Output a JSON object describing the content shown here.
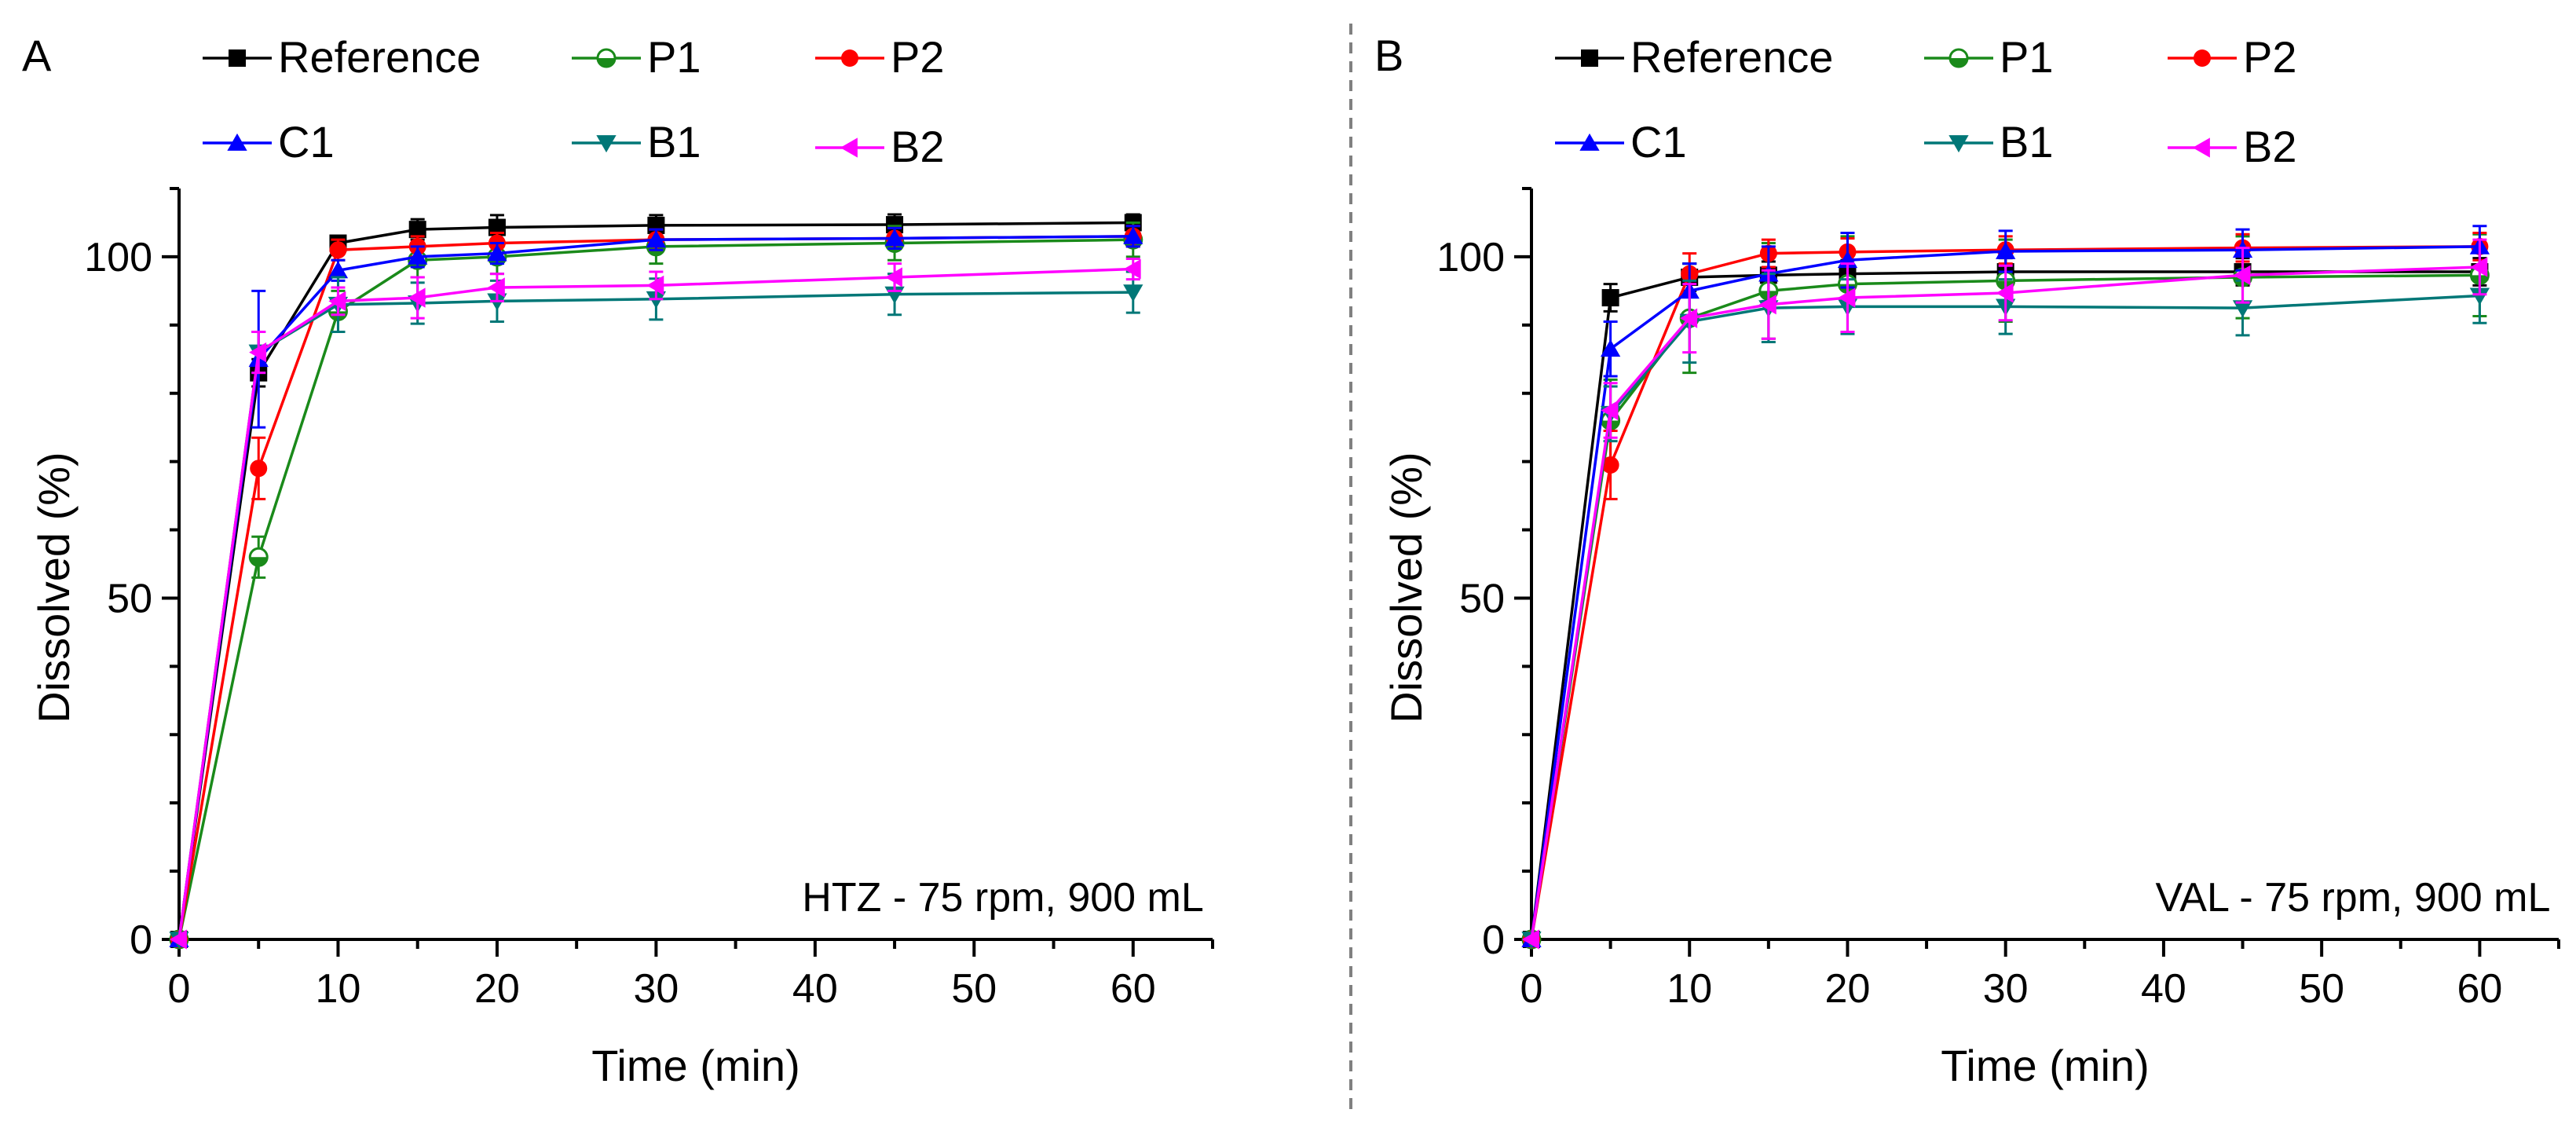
{
  "figure": {
    "divider_color": "#808080"
  },
  "chart_data": [
    {
      "panel_letter": "A",
      "type": "line",
      "title": "",
      "annotation": "HTZ - 75 rpm, 900 mL",
      "xlabel": "Time (min)",
      "ylabel": "Dissolved (%)",
      "xlim": [
        0,
        65
      ],
      "ylim": [
        0,
        110
      ],
      "xticks": [
        0,
        10,
        20,
        30,
        40,
        50,
        60
      ],
      "yticks": [
        0,
        50,
        100
      ],
      "x": [
        0,
        5,
        10,
        15,
        20,
        30,
        45,
        60
      ],
      "legend_position": "top",
      "series": [
        {
          "name": "Reference",
          "color": "#000000",
          "marker": "square",
          "values": [
            0,
            83,
            102,
            104,
            104.3,
            104.6,
            104.7,
            105
          ],
          "errors": [
            0,
            2,
            1,
            1.5,
            1.8,
            1.5,
            1.5,
            1.2
          ]
        },
        {
          "name": "P1",
          "color": "#1a8a1a",
          "marker": "circle-half",
          "values": [
            0,
            56,
            92,
            99.5,
            100,
            101.5,
            102,
            102.5
          ],
          "errors": [
            0,
            3,
            3,
            2.5,
            2.5,
            2.5,
            2.5,
            2.5
          ]
        },
        {
          "name": "P2",
          "color": "#ff0000",
          "marker": "circle",
          "values": [
            0,
            69,
            101,
            101.5,
            102,
            102.5,
            102.7,
            103
          ],
          "errors": [
            0,
            4.5,
            1.5,
            1.5,
            1.5,
            1.5,
            1.5,
            1.5
          ]
        },
        {
          "name": "C1",
          "color": "#0000ff",
          "marker": "triangle-up",
          "values": [
            0,
            85,
            98,
            100,
            100.5,
            102.5,
            102.7,
            103
          ],
          "errors": [
            0,
            10,
            1.5,
            1.5,
            1.5,
            1.5,
            1.5,
            1.5
          ]
        },
        {
          "name": "B1",
          "color": "#007777",
          "marker": "triangle-down",
          "values": [
            0,
            86,
            93,
            93.2,
            93.5,
            93.8,
            94.5,
            94.8
          ],
          "errors": [
            0,
            3,
            4,
            3,
            3,
            3,
            3,
            3
          ]
        },
        {
          "name": "B2",
          "color": "#ff00ff",
          "marker": "triangle-left",
          "values": [
            0,
            86,
            93.5,
            94,
            95.5,
            95.8,
            97,
            98.2
          ],
          "errors": [
            0,
            3,
            2,
            3,
            2,
            2,
            2,
            1.5
          ]
        }
      ]
    },
    {
      "panel_letter": "B",
      "type": "line",
      "title": "",
      "annotation": "VAL - 75 rpm, 900 mL",
      "xlabel": "Time (min)",
      "ylabel": "Dissolved (%)",
      "xlim": [
        0,
        65
      ],
      "ylim": [
        0,
        110
      ],
      "xticks": [
        0,
        10,
        20,
        30,
        40,
        50,
        60
      ],
      "yticks": [
        0,
        50,
        100
      ],
      "x": [
        0,
        5,
        10,
        15,
        20,
        30,
        45,
        60
      ],
      "legend_position": "top",
      "series": [
        {
          "name": "Reference",
          "color": "#000000",
          "marker": "square",
          "values": [
            0,
            94,
            97,
            97.3,
            97.5,
            97.8,
            97.8,
            97.8
          ],
          "errors": [
            0,
            2,
            2,
            2,
            2,
            2,
            2,
            2
          ]
        },
        {
          "name": "P1",
          "color": "#1a8a1a",
          "marker": "circle-half",
          "values": [
            0,
            76,
            91,
            95,
            96,
            96.5,
            97,
            97.3
          ],
          "errors": [
            0,
            6,
            8,
            7,
            7,
            6,
            6,
            6
          ]
        },
        {
          "name": "P2",
          "color": "#ff0000",
          "marker": "circle",
          "values": [
            0,
            69.5,
            97.5,
            100.5,
            100.7,
            101,
            101.3,
            101.5
          ],
          "errors": [
            0,
            5,
            3,
            2,
            2,
            2,
            2,
            2
          ]
        },
        {
          "name": "C1",
          "color": "#0000ff",
          "marker": "triangle-up",
          "values": [
            0,
            86.5,
            95,
            97.5,
            99.5,
            100.8,
            101,
            101.5
          ],
          "errors": [
            0,
            4,
            4,
            4,
            4,
            3,
            3,
            3
          ]
        },
        {
          "name": "B1",
          "color": "#007777",
          "marker": "triangle-down",
          "values": [
            0,
            77,
            90.5,
            92.5,
            92.7,
            92.7,
            92.5,
            94.3
          ],
          "errors": [
            0,
            4,
            6,
            5,
            4,
            4,
            4,
            4
          ]
        },
        {
          "name": "B2",
          "color": "#ff00ff",
          "marker": "triangle-left",
          "values": [
            0,
            77.5,
            91,
            93,
            94,
            94.7,
            97.3,
            98.5
          ],
          "errors": [
            0,
            4,
            5,
            5,
            5,
            4,
            4,
            4
          ]
        }
      ]
    }
  ]
}
